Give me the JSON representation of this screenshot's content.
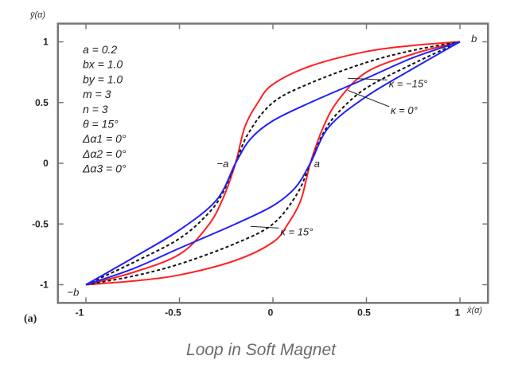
{
  "chart_data": {
    "type": "line",
    "title": "",
    "xlabel": "x̄(α)",
    "ylabel": "ȳ(α)",
    "panel_label": "(a)",
    "xlim": [
      -1.15,
      1.15
    ],
    "ylim": [
      -1.15,
      1.15
    ],
    "xticks": [
      -1,
      -0.5,
      0,
      0.5,
      1
    ],
    "xtick_labels": [
      "-1",
      "-0.5",
      "0",
      "0.5",
      "1"
    ],
    "yticks": [
      -1,
      -0.5,
      0,
      0.5,
      1
    ],
    "ytick_labels": [
      "-1",
      "-0.5",
      "0",
      "0.5",
      "1"
    ],
    "grid": false,
    "parameters": [
      "a = 0.2",
      "bx = 1.0",
      "by = 1.0",
      "m = 3",
      "n = 3",
      "θ = 15°",
      "Δα1 = 0°",
      "Δα2 = 0°",
      "Δα3 = 0°"
    ],
    "series": [
      {
        "color": "#ff2020",
        "dash": false,
        "upper": [
          [
            -1,
            -1
          ],
          [
            -0.75,
            -0.9
          ],
          [
            -0.5,
            -0.75
          ],
          [
            -0.35,
            -0.52
          ],
          [
            -0.27,
            -0.3
          ],
          [
            -0.2,
            0
          ],
          [
            -0.15,
            0.3
          ],
          [
            -0.08,
            0.5
          ],
          [
            0,
            0.65
          ],
          [
            0.2,
            0.8
          ],
          [
            0.5,
            0.92
          ],
          [
            0.75,
            0.97
          ],
          [
            1,
            1
          ]
        ]
      },
      {
        "color": "#111111",
        "dash": true,
        "upper": [
          [
            -1,
            -1
          ],
          [
            -0.75,
            -0.82
          ],
          [
            -0.5,
            -0.62
          ],
          [
            -0.35,
            -0.42
          ],
          [
            -0.27,
            -0.25
          ],
          [
            -0.2,
            0
          ],
          [
            -0.13,
            0.25
          ],
          [
            0,
            0.5
          ],
          [
            0.2,
            0.66
          ],
          [
            0.5,
            0.83
          ],
          [
            0.75,
            0.93
          ],
          [
            1,
            1
          ]
        ]
      },
      {
        "color": "#2020ff",
        "dash": false,
        "upper": [
          [
            -1,
            -1
          ],
          [
            -0.75,
            -0.78
          ],
          [
            -0.5,
            -0.55
          ],
          [
            -0.3,
            -0.3
          ],
          [
            -0.2,
            0
          ],
          [
            -0.12,
            0.2
          ],
          [
            0,
            0.35
          ],
          [
            0.2,
            0.5
          ],
          [
            0.5,
            0.7
          ],
          [
            0.75,
            0.87
          ],
          [
            1,
            1
          ]
        ]
      }
    ],
    "annotations": [
      {
        "text": "b",
        "x": 1.06,
        "y": 1.03
      },
      {
        "text": "−b",
        "x": -1.1,
        "y": -1.06
      },
      {
        "text": "−a",
        "x": -0.3,
        "y": 0
      },
      {
        "text": "a",
        "x": 0.22,
        "y": 0
      },
      {
        "text": "κ = −15°",
        "x": 0.62,
        "y": 0.66,
        "arrow_to": [
          0.4,
          0.7
        ]
      },
      {
        "text": "κ = 0°",
        "x": 0.63,
        "y": 0.44,
        "arrow_to": [
          0.4,
          0.6
        ]
      },
      {
        "text": "κ = 15°",
        "x": 0.04,
        "y": -0.56,
        "arrow_to": [
          -0.12,
          -0.52
        ]
      }
    ]
  },
  "caption": "Loop in Soft Magnet"
}
